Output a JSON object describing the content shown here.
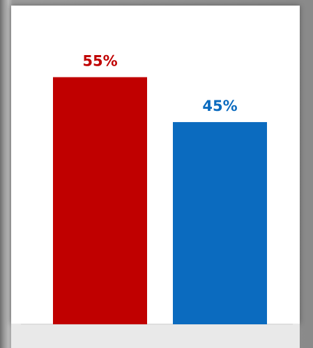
{
  "chart_data": {
    "type": "bar",
    "categories": [
      "",
      ""
    ],
    "values": [
      55,
      45
    ],
    "value_labels": [
      "55%",
      "45%"
    ],
    "colors": [
      "#c00000",
      "#0b6bbf"
    ],
    "title": "",
    "xlabel": "",
    "ylabel": "",
    "ylim": [
      0,
      70
    ],
    "grid": false,
    "legend": "none"
  }
}
